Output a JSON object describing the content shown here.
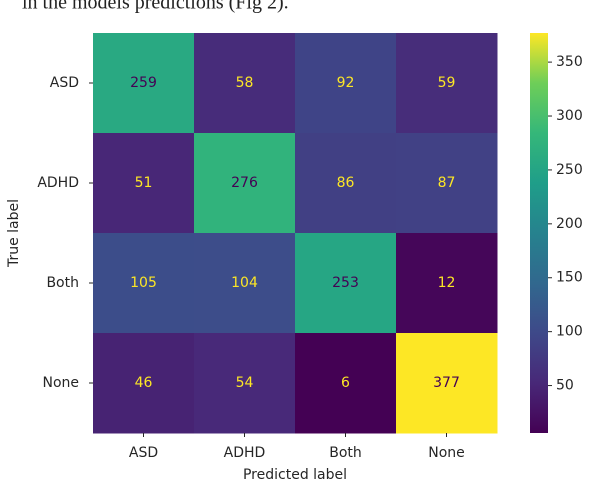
{
  "caption": "in the models predictions (Fig 2).",
  "chart_data": {
    "type": "heatmap",
    "colormap": "viridis",
    "xlabel": "Predicted label",
    "ylabel": "True label",
    "x_categories": [
      "ASD",
      "ADHD",
      "Both",
      "None"
    ],
    "y_categories": [
      "ASD",
      "ADHD",
      "Both",
      "None"
    ],
    "values": [
      [
        259,
        58,
        92,
        59
      ],
      [
        51,
        276,
        86,
        87
      ],
      [
        105,
        104,
        253,
        12
      ],
      [
        46,
        54,
        6,
        377
      ]
    ],
    "clim": [
      6,
      377
    ],
    "colorbar_ticks": [
      50,
      100,
      150,
      200,
      250,
      300,
      350
    ]
  }
}
